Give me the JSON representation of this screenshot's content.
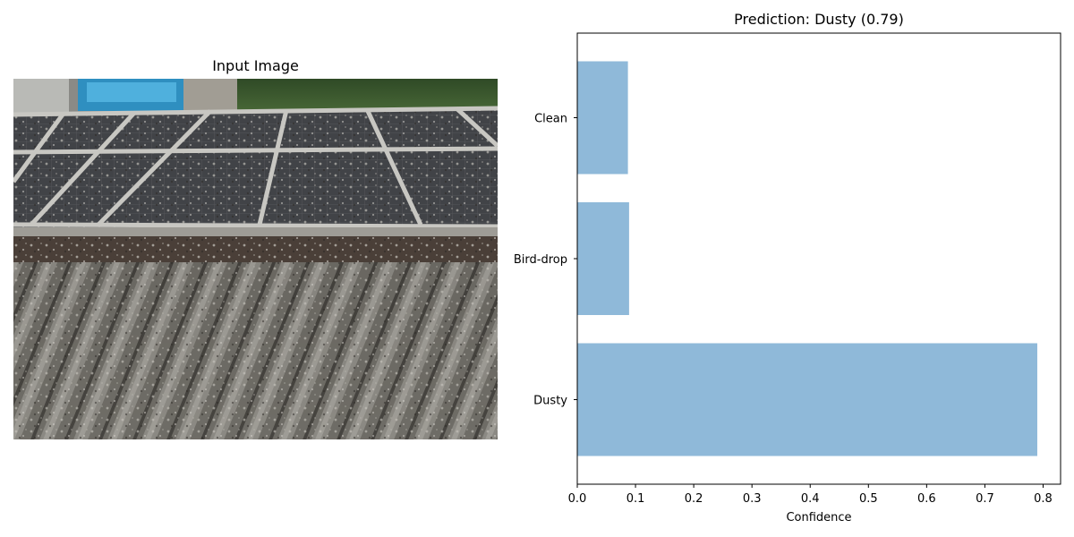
{
  "left_panel": {
    "title": "Input Image",
    "image_alt": "Solar panels on a roof covered with dust and bird droppings"
  },
  "chart_data": {
    "type": "bar",
    "orientation": "horizontal",
    "title": "Prediction: Dusty (0.79)",
    "xlabel": "Confidence",
    "ylabel": "",
    "categories": [
      "Dusty",
      "Bird-drop",
      "Clean"
    ],
    "values": [
      0.79,
      0.089,
      0.087
    ],
    "xlim": [
      0,
      0.83
    ],
    "xticks": [
      0.0,
      0.1,
      0.2,
      0.3,
      0.4,
      0.5,
      0.6,
      0.7,
      0.8
    ],
    "xtick_labels": [
      "0.0",
      "0.1",
      "0.2",
      "0.3",
      "0.4",
      "0.5",
      "0.6",
      "0.7",
      "0.8"
    ],
    "bar_color": "#8fb9d9",
    "grid": false
  }
}
